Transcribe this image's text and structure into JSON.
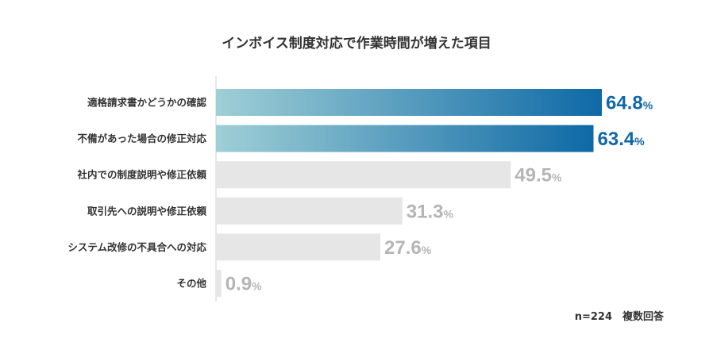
{
  "colors": {
    "highlight_start": "#9fcfd6",
    "highlight_end": "#0e69a6",
    "highlight_text": "#0f69a6",
    "muted_bar": "#e6e6e6",
    "muted_text": "#b5b5b5",
    "axis": "#cfcfcf"
  },
  "chart_data": {
    "type": "bar",
    "orientation": "horizontal",
    "title": "インボイス制度対応で作業時間が増えた項目",
    "categories": [
      "適格請求書かどうかの確認",
      "不備があった場合の修正対応",
      "社内での制度説明や修正依頼",
      "取引先への説明や修正依頼",
      "システム改修の不具合への対応",
      "その他"
    ],
    "values": [
      64.8,
      63.4,
      49.5,
      31.3,
      27.6,
      0.9
    ],
    "value_labels": [
      "64.8",
      "63.4",
      "49.5",
      "31.3",
      "27.6",
      "0.9"
    ],
    "unit": "%",
    "highlighted": [
      true,
      true,
      false,
      false,
      false,
      false
    ],
    "xlim": [
      0,
      100
    ],
    "grid": false,
    "note": "n=224　複数回答"
  }
}
